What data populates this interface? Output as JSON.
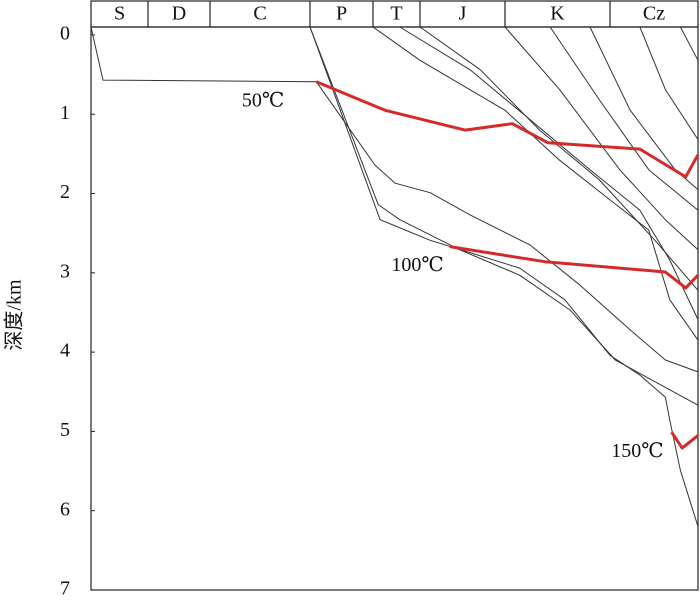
{
  "chart_data": {
    "type": "burial-history",
    "y_label": "深度/km",
    "periods": [
      "S",
      "D",
      "C",
      "P",
      "T",
      "J",
      "K",
      "Cz"
    ],
    "xlim": [
      0,
      8
    ],
    "ylim": [
      -0.1,
      7
    ],
    "yticks": [
      0,
      1,
      2,
      3,
      4,
      5,
      6,
      7
    ],
    "curve_color": "#333333",
    "burial_curves": [
      {
        "x": [
          0,
          0.21,
          3.1,
          4.04,
          4.47,
          5.12,
          5.59,
          6.24,
          6.71,
          7.23,
          7.63,
          8
        ],
        "values": [
          -0.1,
          0.57,
          0.59,
          1.64,
          1.87,
          1.99,
          2.27,
          2.65,
          3.15,
          3.72,
          4.1,
          4.25
        ]
      },
      {
        "x": [
          3,
          4.11,
          4.57,
          5.47,
          6.14,
          6.62,
          7.06,
          7.57,
          8
        ],
        "values": [
          -0.1,
          2.14,
          2.33,
          2.71,
          3.03,
          3.47,
          4.1,
          4.41,
          4.67
        ]
      },
      {
        "x": [
          3,
          4.15,
          5.12,
          6.14,
          6.57,
          7,
          7.34,
          7.63,
          7.68,
          7.8,
          8
        ],
        "values": [
          -0.1,
          2.33,
          2.59,
          2.94,
          3.34,
          4.04,
          4.29,
          4.57,
          4.86,
          5.49,
          6.2
        ]
      },
      {
        "x": [
          4,
          5,
          6,
          6.52,
          7,
          7.44,
          7.68,
          8
        ],
        "values": [
          -0.1,
          0.32,
          0.95,
          1.58,
          2.08,
          2.46,
          3.34,
          3.85
        ]
      },
      {
        "x": [
          4.57,
          5.59,
          6.24,
          6.81,
          7.34,
          7.68,
          8
        ],
        "values": [
          -0.1,
          0.44,
          1.07,
          1.7,
          2.21,
          2.84,
          3.59
        ]
      },
      {
        "x": [
          5,
          5.71,
          6.33,
          6.9,
          7.51,
          8
        ],
        "values": [
          -0.1,
          0.44,
          1.2,
          1.83,
          2.59,
          3.22
        ]
      },
      {
        "x": [
          6,
          6.52,
          7.11,
          7.63,
          8
        ],
        "values": [
          -0.1,
          0.69,
          1.7,
          2.33,
          2.71
        ]
      },
      {
        "x": [
          6.43,
          6.9,
          7.44,
          8
        ],
        "values": [
          -0.1,
          0.82,
          1.7,
          2.21
        ]
      },
      {
        "x": [
          6.81,
          7.23,
          7.74,
          8
        ],
        "values": [
          -0.1,
          0.95,
          1.7,
          1.95
        ]
      },
      {
        "x": [
          7.34,
          7.63,
          8
        ],
        "values": [
          -0.1,
          0.69,
          1.32
        ]
      },
      {
        "x": [
          7.8,
          8
        ],
        "values": [
          -0.1,
          0.32
        ]
      }
    ],
    "isotherm_color": "#d42a2a",
    "isotherms": [
      {
        "name": "50℃",
        "x": [
          3.1,
          4.26,
          5.53,
          6.07,
          6.41,
          7.34,
          7.86,
          8
        ],
        "values": [
          0.59,
          0.95,
          1.2,
          1.12,
          1.36,
          1.44,
          1.79,
          1.51
        ]
      },
      {
        "name": "100℃",
        "x": [
          5.35,
          6.38,
          7.63,
          7.86,
          8
        ],
        "values": [
          2.67,
          2.86,
          2.99,
          3.19,
          3.03
        ]
      },
      {
        "name": "150℃",
        "x": [
          7.7,
          7.82,
          8
        ],
        "values": [
          5.01,
          5.21,
          5.05
        ]
      }
    ]
  }
}
